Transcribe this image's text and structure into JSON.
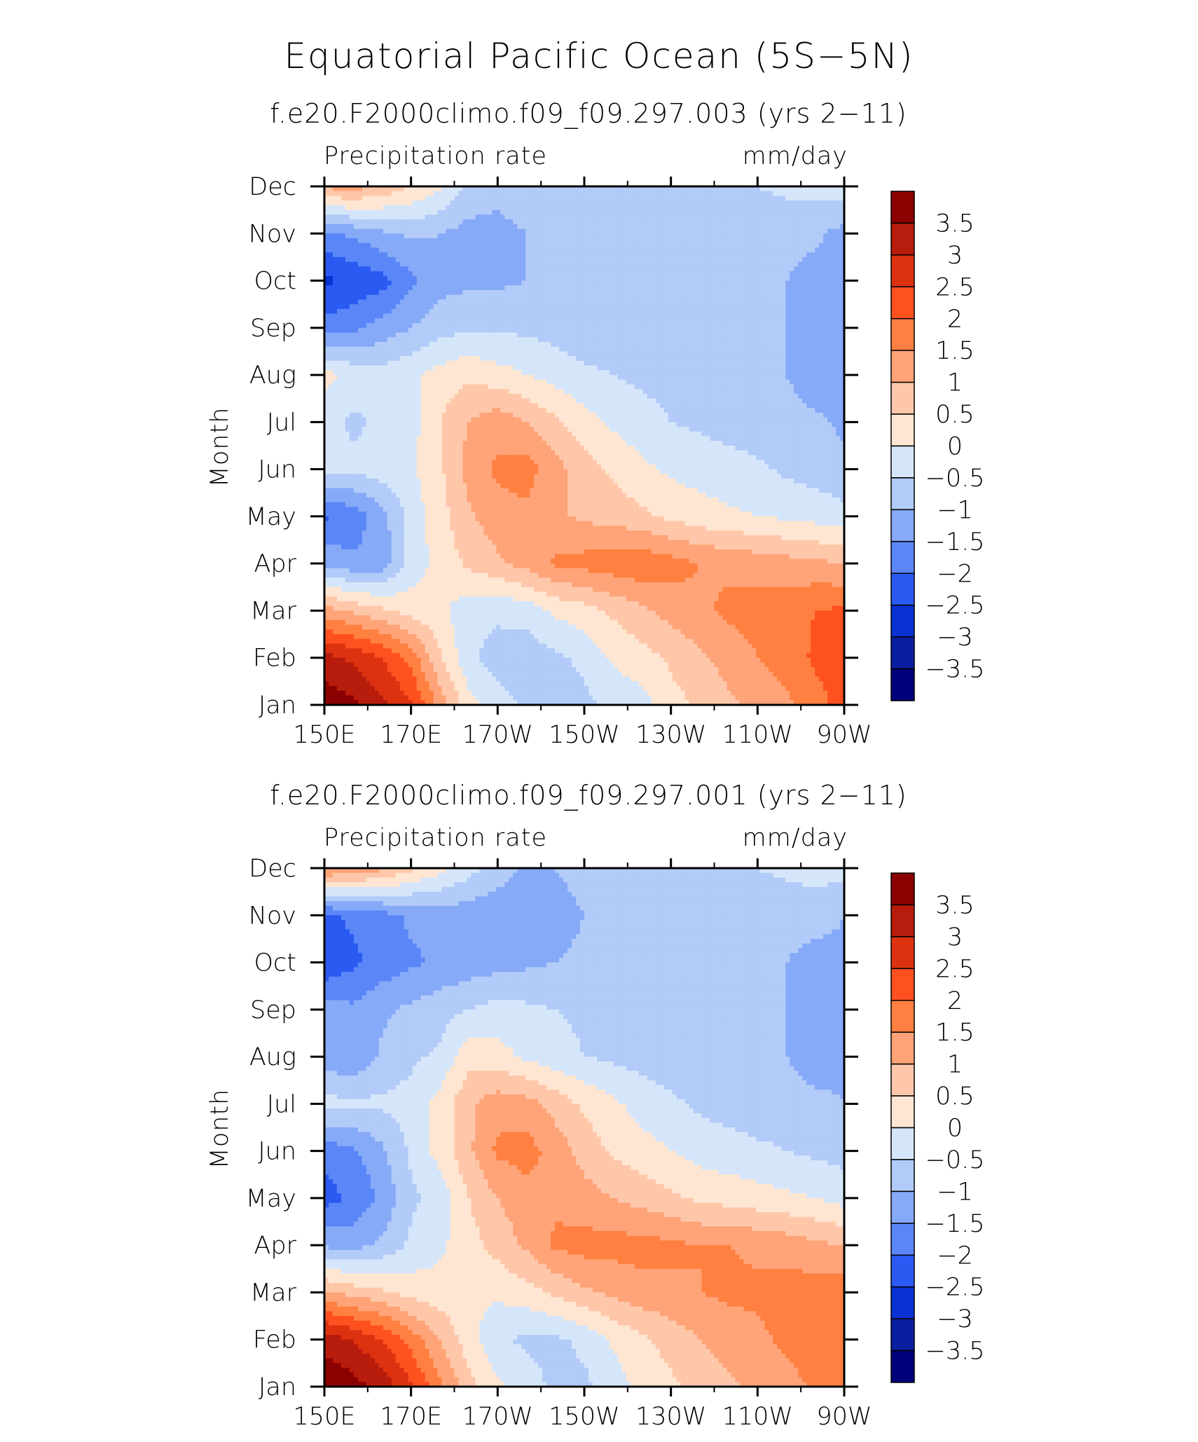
{
  "title": "Equatorial Pacific Ocean (5S−5N)",
  "colorbar": {
    "labels": [
      "3.5",
      "3",
      "2.5",
      "2",
      "1.5",
      "1",
      "0.5",
      "0",
      "−0.5",
      "−1",
      "−1.5",
      "−2",
      "−2.5",
      "−3",
      "−3.5"
    ],
    "colors": [
      "#8b0000",
      "#b81c0c",
      "#dd3210",
      "#ff5020",
      "#ff8040",
      "#ffa478",
      "#ffc7aa",
      "#ffe6d2",
      "#d6e6fa",
      "#b2cbf8",
      "#86aaf8",
      "#5a86f8",
      "#2a5af2",
      "#0a32d2",
      "#0a1ea0",
      "#00007a"
    ]
  },
  "chart_data": [
    {
      "type": "heatmap",
      "title": "f.e20.F2000climo.f09_f09.297.003 (yrs 2−11)",
      "left_label": "Precipitation rate",
      "right_label": "mm/day",
      "ylabel": "Month",
      "x_ticks": [
        "150E",
        "170E",
        "170W",
        "150W",
        "130W",
        "110W",
        "90W"
      ],
      "y_ticks": [
        "Jan",
        "Feb",
        "Mar",
        "Apr",
        "May",
        "Jun",
        "Jul",
        "Aug",
        "Sep",
        "Oct",
        "Nov",
        "Dec"
      ],
      "x_range": [
        150,
        270
      ],
      "y_range": [
        1,
        12
      ],
      "grid": [
        [
          3.8,
          3.6,
          3.1,
          2.6,
          1.3,
          0.2,
          -0.3,
          -0.6,
          -0.7,
          -0.6,
          -0.4,
          -0.2,
          0.3,
          0.6,
          0.9,
          1.1,
          1.4,
          1.8,
          2.2
        ],
        [
          3.2,
          2.9,
          2.5,
          1.8,
          0.6,
          -0.4,
          -0.7,
          -0.8,
          -0.6,
          -0.4,
          0.1,
          0.3,
          0.6,
          0.9,
          1.2,
          1.5,
          1.7,
          2.1,
          2.3
        ],
        [
          1.2,
          0.9,
          0.6,
          0.3,
          0.1,
          -0.3,
          -0.4,
          -0.3,
          0.1,
          0.3,
          0.6,
          0.9,
          1.2,
          1.4,
          1.6,
          1.7,
          1.8,
          2.0,
          2.1
        ],
        [
          -1.1,
          -1.4,
          -1.3,
          -0.3,
          0.2,
          0.6,
          0.9,
          1.2,
          1.6,
          1.7,
          1.8,
          1.9,
          1.7,
          1.5,
          1.4,
          1.3,
          1.2,
          1.1,
          1.0
        ],
        [
          -2.1,
          -1.8,
          -1.2,
          -0.3,
          0.3,
          0.9,
          1.3,
          1.4,
          1.1,
          0.9,
          0.8,
          0.6,
          0.4,
          0.2,
          0.1,
          0.0,
          -0.1,
          -0.2,
          -0.3
        ],
        [
          -0.3,
          -0.4,
          -0.2,
          -0.1,
          0.4,
          1.2,
          1.6,
          1.7,
          1.2,
          0.7,
          0.4,
          0.1,
          -0.1,
          -0.2,
          -0.3,
          -0.4,
          -0.6,
          -0.7,
          -0.9
        ],
        [
          -0.3,
          -0.6,
          -0.4,
          -0.2,
          0.5,
          1.0,
          1.3,
          1.0,
          0.6,
          0.2,
          -0.1,
          -0.3,
          -0.5,
          -0.6,
          -0.7,
          -0.8,
          -0.8,
          -0.9,
          -1.1
        ],
        [
          0.2,
          -0.2,
          -0.3,
          -0.1,
          0.2,
          0.4,
          0.2,
          0.0,
          -0.2,
          -0.4,
          -0.5,
          -0.6,
          -0.7,
          -0.8,
          -0.8,
          -0.9,
          -1.0,
          -1.3,
          -1.2
        ],
        [
          -1.8,
          -1.6,
          -1.3,
          -1.0,
          -0.7,
          -0.6,
          -0.6,
          -0.6,
          -0.7,
          -0.8,
          -0.8,
          -0.8,
          -0.8,
          -0.9,
          -0.9,
          -0.9,
          -1.0,
          -1.4,
          -1.2
        ],
        [
          -2.6,
          -2.4,
          -2.2,
          -1.6,
          -1.2,
          -1.1,
          -1.1,
          -1.0,
          -0.9,
          -0.9,
          -0.9,
          -0.8,
          -0.8,
          -0.8,
          -0.9,
          -0.9,
          -1.0,
          -1.2,
          -1.1
        ],
        [
          -1.6,
          -1.4,
          -1.1,
          -0.9,
          -1.0,
          -1.2,
          -1.1,
          -1.0,
          -0.8,
          -0.8,
          -0.8,
          -0.8,
          -0.7,
          -0.8,
          -0.8,
          -0.8,
          -0.8,
          -0.9,
          -1.2
        ],
        [
          1.1,
          1.2,
          0.9,
          0.5,
          0.1,
          -0.6,
          -0.9,
          -0.8,
          -0.7,
          -0.7,
          -0.7,
          -0.6,
          -0.6,
          -0.6,
          -0.6,
          -0.5,
          -0.4,
          -0.3,
          -0.2
        ]
      ]
    },
    {
      "type": "heatmap",
      "title": "f.e20.F2000climo.f09_f09.297.001 (yrs 2−11)",
      "left_label": "Precipitation rate",
      "right_label": "mm/day",
      "ylabel": "Month",
      "x_ticks": [
        "150E",
        "170E",
        "170W",
        "150W",
        "130W",
        "110W",
        "90W"
      ],
      "y_ticks": [
        "Jan",
        "Feb",
        "Mar",
        "Apr",
        "May",
        "Jun",
        "Jul",
        "Aug",
        "Sep",
        "Oct",
        "Nov",
        "Dec"
      ],
      "x_range": [
        150,
        270
      ],
      "y_range": [
        1,
        12
      ],
      "grid": [
        [
          3.9,
          3.7,
          3.3,
          2.6,
          1.6,
          0.7,
          0.1,
          -0.3,
          -0.6,
          -0.6,
          -0.3,
          0.2,
          0.4,
          0.7,
          0.9,
          1.1,
          1.3,
          1.6,
          2.0
        ],
        [
          3.3,
          3.0,
          2.5,
          1.8,
          1.0,
          0.2,
          -0.4,
          -0.6,
          -0.6,
          -0.4,
          0.1,
          0.4,
          0.7,
          1.0,
          1.2,
          1.4,
          1.6,
          1.8,
          2.0
        ],
        [
          1.1,
          0.8,
          0.6,
          0.3,
          0.2,
          0.1,
          0.1,
          0.3,
          0.6,
          0.9,
          1.1,
          1.3,
          1.4,
          1.5,
          1.6,
          1.6,
          1.7,
          1.8,
          1.9
        ],
        [
          -1.1,
          -1.2,
          -0.9,
          -0.4,
          -0.1,
          0.3,
          0.7,
          1.1,
          1.6,
          1.7,
          1.7,
          1.7,
          1.6,
          1.5,
          1.5,
          1.4,
          1.3,
          1.1,
          1.0
        ],
        [
          -2.2,
          -1.9,
          -1.4,
          -0.6,
          -0.3,
          0.5,
          1.0,
          1.3,
          1.4,
          1.2,
          1.0,
          0.8,
          0.6,
          0.4,
          0.3,
          0.2,
          0.1,
          0.0,
          -0.2
        ],
        [
          -1.8,
          -1.6,
          -1.1,
          -0.4,
          0.2,
          0.9,
          1.6,
          1.7,
          1.3,
          0.8,
          0.4,
          0.2,
          0.0,
          -0.2,
          -0.3,
          -0.4,
          -0.5,
          -0.6,
          -0.7
        ],
        [
          -0.3,
          -0.4,
          -0.4,
          -0.3,
          0.2,
          0.9,
          1.3,
          1.2,
          0.8,
          0.4,
          0.1,
          -0.2,
          -0.4,
          -0.6,
          -0.7,
          -0.8,
          -0.8,
          -0.9,
          -1.0
        ],
        [
          -1.3,
          -1.4,
          -0.9,
          -0.6,
          -0.4,
          0.3,
          0.2,
          -0.1,
          -0.3,
          -0.5,
          -0.6,
          -0.7,
          -0.8,
          -0.8,
          -0.9,
          -0.9,
          -1.0,
          -1.2,
          -1.1
        ],
        [
          -1.3,
          -1.4,
          -1.1,
          -0.9,
          -0.7,
          -0.5,
          -0.3,
          -0.4,
          -0.5,
          -0.6,
          -0.7,
          -0.8,
          -0.8,
          -0.9,
          -0.9,
          -0.9,
          -1.0,
          -1.1,
          -1.1
        ],
        [
          -2.4,
          -2.1,
          -1.8,
          -1.6,
          -1.4,
          -1.3,
          -1.2,
          -1.1,
          -1.0,
          -0.9,
          -0.9,
          -0.8,
          -0.8,
          -0.8,
          -0.9,
          -0.9,
          -1.0,
          -1.2,
          -1.1
        ],
        [
          -2.1,
          -1.9,
          -1.7,
          -1.4,
          -1.3,
          -1.3,
          -1.4,
          -1.4,
          -1.2,
          -1.0,
          -0.9,
          -0.9,
          -0.8,
          -0.8,
          -0.8,
          -0.8,
          -0.8,
          -0.8,
          -1.0
        ],
        [
          1.6,
          1.4,
          1.1,
          0.6,
          0.2,
          -0.3,
          -0.7,
          -1.1,
          -1.0,
          -0.8,
          -0.7,
          -0.7,
          -0.6,
          -0.6,
          -0.6,
          -0.5,
          -0.4,
          -0.3,
          -0.3
        ]
      ]
    }
  ]
}
